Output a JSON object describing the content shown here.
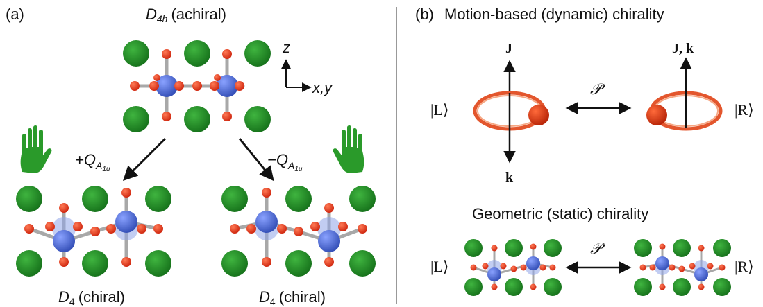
{
  "panel_a": {
    "label": "(a)",
    "top_group": "D",
    "top_group_sub": "4h",
    "top_group_note": "(achiral)",
    "axis_z": "z",
    "axis_xy": "x,y",
    "left_mode_sign": "+Q",
    "right_mode_sign": "−Q",
    "mode_sub": "A",
    "mode_subsub": "1u",
    "bottom_left_group": "D",
    "bottom_left_group_sub": "4",
    "bottom_left_note": "(chiral)",
    "bottom_right_group": "D",
    "bottom_right_group_sub": "4",
    "bottom_right_note": "(chiral)"
  },
  "panel_b": {
    "label": "(b)",
    "dynamic_title": "Motion-based (dynamic) chirality",
    "static_title": "Geometric (static) chirality",
    "J_label": "J",
    "k_label": "k",
    "Jk_label": "J, k",
    "parity_symbol": "𝒫",
    "ket_L": "|L⟩",
    "ket_R": "|R⟩"
  },
  "colors": {
    "green_atom": "#1e8a1e",
    "red_atom": "#e8321a",
    "blue_atom": "#4f6fd0",
    "bond": "#9a9a9a",
    "ring": "#e04416",
    "hand": "#2a9a2a"
  }
}
